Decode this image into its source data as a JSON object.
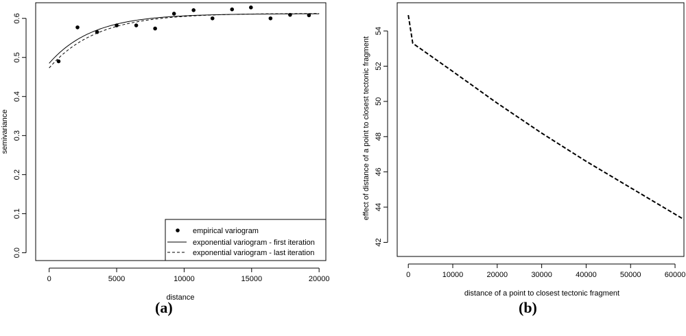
{
  "chart_data": [
    {
      "type": "scatter",
      "panel_label": "(a)",
      "xlabel": "distance",
      "ylabel": "semivariance",
      "xlim": [
        -1000,
        20500
      ],
      "ylim": [
        -0.02,
        0.64
      ],
      "xticks": [
        0,
        5000,
        10000,
        15000,
        20000
      ],
      "yticks": [
        0.0,
        0.1,
        0.2,
        0.3,
        0.4,
        0.5,
        0.6
      ],
      "xtick_labels": [
        "0",
        "5000",
        "10000",
        "15000",
        "20000"
      ],
      "ytick_labels": [
        "0.0",
        "0.1",
        "0.2",
        "0.3",
        "0.4",
        "0.5",
        "0.6"
      ],
      "points": {
        "name": "empirical variogram",
        "x": [
          700,
          2100,
          3550,
          5000,
          6450,
          7850,
          9250,
          10700,
          12100,
          13550,
          14950,
          16400,
          17850,
          19250
        ],
        "y": [
          0.49,
          0.577,
          0.565,
          0.582,
          0.582,
          0.574,
          0.612,
          0.621,
          0.6,
          0.623,
          0.628,
          0.6,
          0.609,
          0.608
        ]
      },
      "series": [
        {
          "name": "exponential variogram - first iteration",
          "style": "solid",
          "nugget": 0.485,
          "sill": 0.612,
          "range": 3200,
          "x_max": 20000
        },
        {
          "name": "exponential variogram - last iteration",
          "style": "dashed",
          "nugget": 0.473,
          "sill": 0.613,
          "range": 3500,
          "x_max": 20000
        }
      ],
      "legend": {
        "position": "bottom-right",
        "items": [
          {
            "label": "empirical variogram",
            "marker": "point"
          },
          {
            "label": "exponential variogram - first iteration",
            "marker": "solid"
          },
          {
            "label": "exponential variogram - last iteration",
            "marker": "dashed"
          }
        ]
      }
    },
    {
      "type": "line",
      "panel_label": "(b)",
      "xlabel": "distance of a point to closest tectonic fragment",
      "ylabel": "effect of distance of a point to closest tectonic fragment",
      "xlim": [
        -2500,
        62000
      ],
      "ylim": [
        41.2,
        55.6
      ],
      "xticks": [
        0,
        10000,
        20000,
        30000,
        40000,
        50000,
        60000
      ],
      "yticks": [
        42,
        44,
        46,
        48,
        50,
        52,
        54
      ],
      "xtick_labels": [
        "0",
        "10000",
        "20000",
        "30000",
        "40000",
        "50000",
        "60000"
      ],
      "ytick_labels": [
        "42",
        "44",
        "46",
        "48",
        "50",
        "52",
        "54"
      ],
      "series": [
        {
          "name": "effect",
          "style": "dashed",
          "x": [
            0,
            1000,
            10000,
            20000,
            30000,
            40000,
            50000,
            62000
          ],
          "y": [
            54.9,
            53.3,
            51.7,
            49.9,
            48.2,
            46.6,
            45.1,
            43.3
          ]
        }
      ]
    }
  ]
}
